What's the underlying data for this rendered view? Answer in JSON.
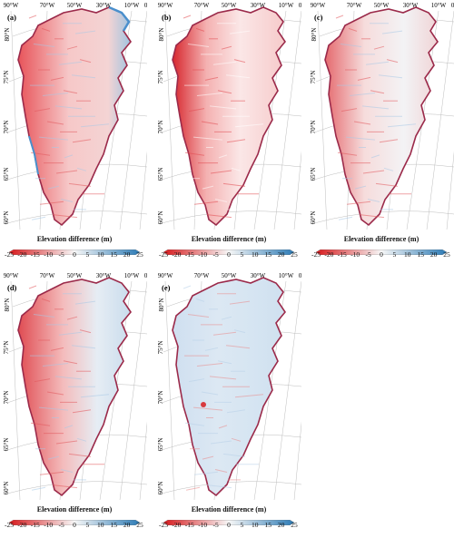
{
  "panels": [
    {
      "label": "(a)",
      "variant": "mixed"
    },
    {
      "label": "(b)",
      "variant": "red"
    },
    {
      "label": "(c)",
      "variant": "margin"
    },
    {
      "label": "(d)",
      "variant": "west-red"
    },
    {
      "label": "(e)",
      "variant": "blue"
    }
  ],
  "graticule": {
    "longitudes": [
      "90°W",
      "70°W",
      "50°W",
      "30°W",
      "10°W",
      "0°",
      "10°E"
    ],
    "latitudes": [
      "80°N",
      "75°N",
      "70°N",
      "65°N",
      "60°N"
    ]
  },
  "colorbar": {
    "title": "Elevation difference (m)",
    "ticks": [
      "-25",
      "-20",
      "-15",
      "-10",
      "-5",
      "0",
      "5",
      "10",
      "15",
      "20",
      "25"
    ],
    "colors": {
      "low": "#d7191c",
      "mid": "#f7f7f7",
      "high": "#2c7bb6"
    }
  }
}
